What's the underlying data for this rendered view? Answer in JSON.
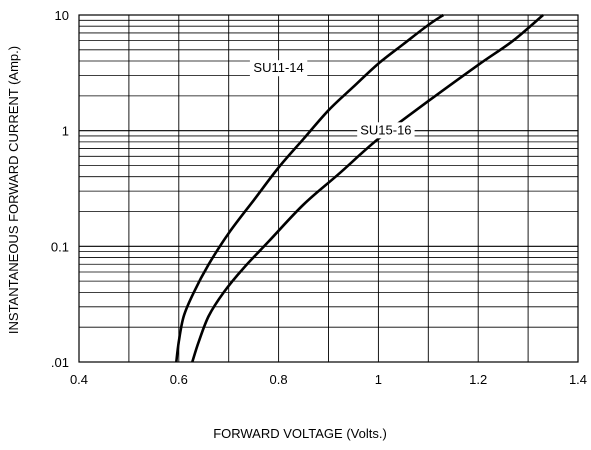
{
  "chart_data": {
    "type": "line",
    "title": "",
    "xlabel": "FORWARD VOLTAGE (Volts.)",
    "ylabel": "INSTANTANEOUS FORWARD CURRENT (Amp.)",
    "x_scale": "linear",
    "y_scale": "log",
    "xlim": [
      0.4,
      1.4
    ],
    "ylim": [
      0.01,
      10
    ],
    "x_ticks": [
      0.4,
      0.6,
      0.8,
      1.0,
      1.2,
      1.4
    ],
    "x_tick_labels": [
      "0.4",
      "0.6",
      "0.8",
      "1",
      "1.2",
      "1.4"
    ],
    "y_ticks": [
      0.01,
      0.1,
      1,
      10
    ],
    "y_tick_labels": [
      ".01",
      "0.1",
      "1",
      "10"
    ],
    "grid": true,
    "series": [
      {
        "name": "SU11-14",
        "color": "#000000",
        "points": [
          [
            0.595,
            0.01
          ],
          [
            0.6,
            0.015
          ],
          [
            0.61,
            0.025
          ],
          [
            0.63,
            0.04
          ],
          [
            0.66,
            0.07
          ],
          [
            0.7,
            0.13
          ],
          [
            0.75,
            0.25
          ],
          [
            0.8,
            0.48
          ],
          [
            0.85,
            0.85
          ],
          [
            0.9,
            1.5
          ],
          [
            0.95,
            2.4
          ],
          [
            1.0,
            3.8
          ],
          [
            1.05,
            5.6
          ],
          [
            1.1,
            8.2
          ],
          [
            1.13,
            10
          ]
        ]
      },
      {
        "name": "SU15-16",
        "color": "#000000",
        "points": [
          [
            0.627,
            0.01
          ],
          [
            0.64,
            0.015
          ],
          [
            0.66,
            0.025
          ],
          [
            0.69,
            0.04
          ],
          [
            0.73,
            0.065
          ],
          [
            0.78,
            0.11
          ],
          [
            0.85,
            0.23
          ],
          [
            0.92,
            0.42
          ],
          [
            1.0,
            0.85
          ],
          [
            1.1,
            1.8
          ],
          [
            1.2,
            3.7
          ],
          [
            1.27,
            6.0
          ],
          [
            1.33,
            10
          ]
        ]
      }
    ]
  }
}
